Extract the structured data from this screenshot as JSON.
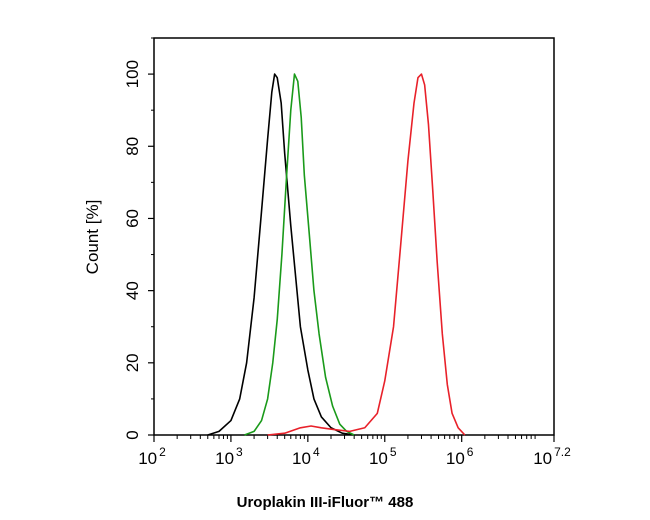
{
  "chart_data": {
    "type": "line",
    "xlabel": "Uroplakin III-iFluor™ 488",
    "ylabel": "Count [%]",
    "x_scale": "log",
    "xlim": [
      100,
      15848932
    ],
    "ylim": [
      0,
      110
    ],
    "x_ticks": [
      {
        "value": 100,
        "base": "10",
        "exp": "2"
      },
      {
        "value": 1000,
        "base": "10",
        "exp": "3"
      },
      {
        "value": 10000,
        "base": "10",
        "exp": "4"
      },
      {
        "value": 100000,
        "base": "10",
        "exp": "5"
      },
      {
        "value": 1000000,
        "base": "10",
        "exp": "6"
      },
      {
        "value": 15848932,
        "base": "10",
        "exp": "7.2"
      }
    ],
    "y_ticks": [
      0,
      20,
      40,
      60,
      80,
      100
    ],
    "grid": false,
    "series": [
      {
        "color": "#000000",
        "points": [
          [
            500,
            0
          ],
          [
            700,
            1
          ],
          [
            1000,
            4
          ],
          [
            1300,
            10
          ],
          [
            1600,
            20
          ],
          [
            2000,
            38
          ],
          [
            2500,
            62
          ],
          [
            3000,
            82
          ],
          [
            3400,
            95
          ],
          [
            3700,
            100
          ],
          [
            4000,
            99
          ],
          [
            4500,
            92
          ],
          [
            5000,
            78
          ],
          [
            6000,
            58
          ],
          [
            7000,
            43
          ],
          [
            8000,
            30
          ],
          [
            10000,
            18
          ],
          [
            12000,
            10
          ],
          [
            15000,
            5
          ],
          [
            20000,
            2
          ],
          [
            28000,
            0.5
          ],
          [
            40000,
            0
          ]
        ]
      },
      {
        "color": "#1a9a1a",
        "points": [
          [
            1500,
            0
          ],
          [
            2000,
            1
          ],
          [
            2500,
            4
          ],
          [
            3000,
            10
          ],
          [
            3500,
            20
          ],
          [
            4000,
            32
          ],
          [
            4600,
            50
          ],
          [
            5300,
            72
          ],
          [
            6000,
            90
          ],
          [
            6700,
            100
          ],
          [
            7400,
            98
          ],
          [
            8200,
            88
          ],
          [
            9000,
            72
          ],
          [
            10500,
            55
          ],
          [
            12000,
            40
          ],
          [
            14000,
            28
          ],
          [
            17000,
            16
          ],
          [
            21000,
            8
          ],
          [
            26000,
            3
          ],
          [
            32000,
            1
          ],
          [
            40000,
            0
          ]
        ]
      },
      {
        "color": "#e8212a",
        "points": [
          [
            3000,
            0
          ],
          [
            5000,
            0.5
          ],
          [
            8000,
            2
          ],
          [
            11000,
            2.5
          ],
          [
            15000,
            2
          ],
          [
            22000,
            1.5
          ],
          [
            35000,
            1
          ],
          [
            55000,
            2
          ],
          [
            80000,
            6
          ],
          [
            100000,
            15
          ],
          [
            130000,
            30
          ],
          [
            160000,
            52
          ],
          [
            200000,
            76
          ],
          [
            240000,
            92
          ],
          [
            270000,
            99
          ],
          [
            300000,
            100
          ],
          [
            330000,
            97
          ],
          [
            370000,
            86
          ],
          [
            420000,
            68
          ],
          [
            480000,
            48
          ],
          [
            560000,
            28
          ],
          [
            650000,
            14
          ],
          [
            750000,
            6
          ],
          [
            900000,
            2
          ],
          [
            1100000,
            0
          ]
        ]
      }
    ]
  }
}
